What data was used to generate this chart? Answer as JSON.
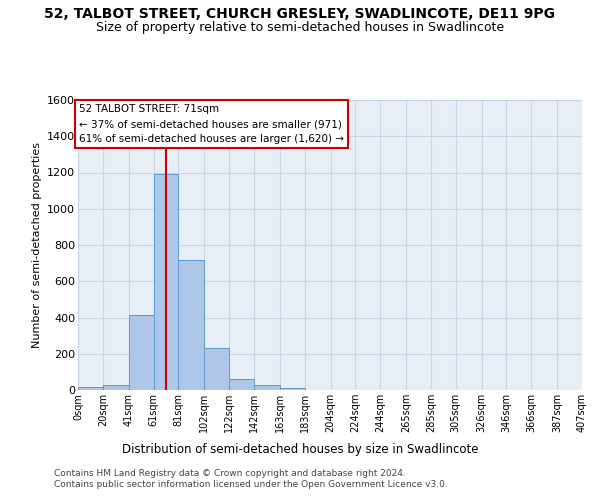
{
  "title": "52, TALBOT STREET, CHURCH GRESLEY, SWADLINCOTE, DE11 9PG",
  "subtitle": "Size of property relative to semi-detached houses in Swadlincote",
  "xlabel": "Distribution of semi-detached houses by size in Swadlincote",
  "ylabel": "Number of semi-detached properties",
  "footer1": "Contains HM Land Registry data © Crown copyright and database right 2024.",
  "footer2": "Contains public sector information licensed under the Open Government Licence v3.0.",
  "annotation_title": "52 TALBOT STREET: 71sqm",
  "annotation_line1": "← 37% of semi-detached houses are smaller (971)",
  "annotation_line2": "61% of semi-detached houses are larger (1,620) →",
  "property_size": 71,
  "bin_edges": [
    0,
    20,
    41,
    61,
    81,
    102,
    122,
    142,
    163,
    183,
    204,
    224,
    244,
    265,
    285,
    305,
    326,
    346,
    366,
    387,
    407
  ],
  "bin_labels": [
    "0sqm",
    "20sqm",
    "41sqm",
    "61sqm",
    "81sqm",
    "102sqm",
    "122sqm",
    "142sqm",
    "163sqm",
    "183sqm",
    "204sqm",
    "224sqm",
    "244sqm",
    "265sqm",
    "285sqm",
    "305sqm",
    "326sqm",
    "346sqm",
    "366sqm",
    "387sqm",
    "407sqm"
  ],
  "bar_heights": [
    15,
    30,
    415,
    1190,
    720,
    230,
    60,
    30,
    10,
    0,
    0,
    0,
    0,
    0,
    0,
    0,
    0,
    0,
    0,
    0
  ],
  "bar_color": "#aec6e8",
  "bar_edge_color": "#5b9bd5",
  "line_color": "#cc0000",
  "annotation_box_color": "#cc0000",
  "ylim": [
    0,
    1600
  ],
  "yticks": [
    0,
    200,
    400,
    600,
    800,
    1000,
    1200,
    1400,
    1600
  ],
  "grid_color": "#c8d4e8",
  "bg_color": "#e8eef5",
  "title_fontsize": 10,
  "subtitle_fontsize": 9,
  "footer_fontsize": 6.5
}
